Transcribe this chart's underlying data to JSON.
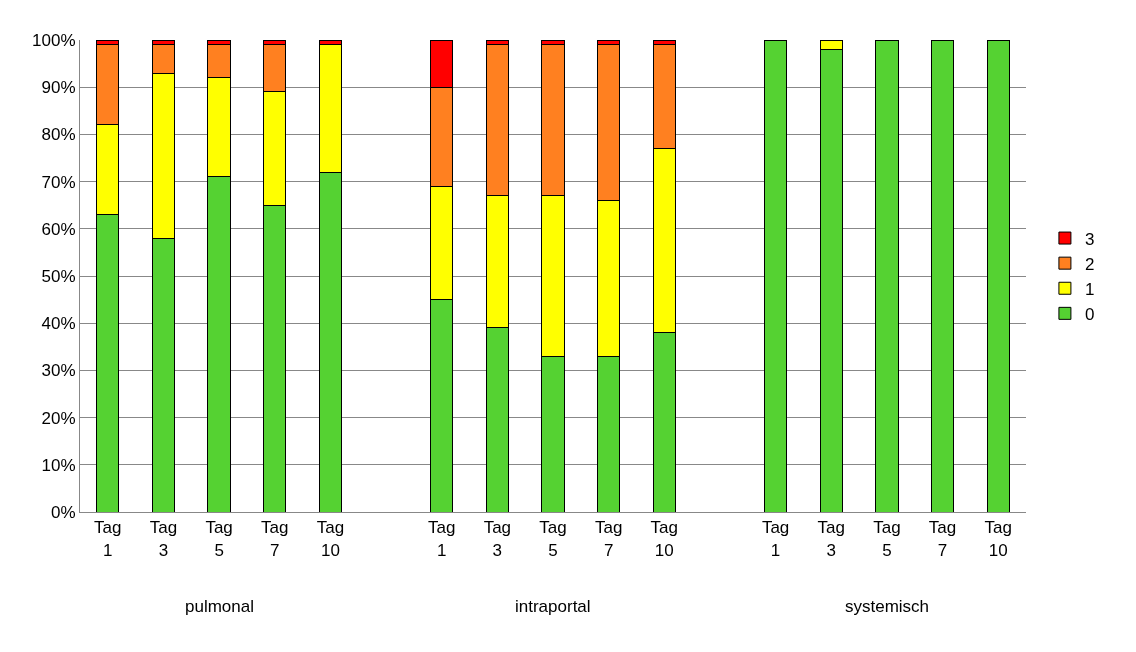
{
  "chart_data": {
    "type": "bar",
    "stacked": true,
    "categories": [
      "Tag 1",
      "Tag 3",
      "Tag 5",
      "Tag 7",
      "Tag 10",
      null,
      "Tag 1",
      "Tag 3",
      "Tag 5",
      "Tag 7",
      "Tag 10",
      null,
      "Tag 1",
      "Tag 3",
      "Tag 5",
      "Tag 7",
      "Tag 10"
    ],
    "series": [
      {
        "name": "0",
        "color": "#55d232",
        "values": [
          63,
          58,
          71,
          65,
          72,
          null,
          45,
          39,
          33,
          33,
          38,
          null,
          100,
          98,
          100,
          100,
          100
        ]
      },
      {
        "name": "1",
        "color": "#ffff00",
        "values": [
          19,
          35,
          21,
          24,
          27,
          null,
          24,
          28,
          34,
          33,
          39,
          null,
          0,
          2,
          0,
          0,
          0
        ]
      },
      {
        "name": "2",
        "color": "#ff8020",
        "values": [
          17,
          6,
          7,
          10,
          0,
          null,
          21,
          32,
          32,
          33,
          22,
          null,
          0,
          0,
          0,
          0,
          0
        ]
      },
      {
        "name": "3",
        "color": "#ff0000",
        "values": [
          1,
          1,
          1,
          1,
          1,
          null,
          10,
          1,
          1,
          1,
          1,
          null,
          0,
          0,
          0,
          0,
          0
        ]
      }
    ],
    "annotations": [
      "pulmonal",
      "intraportal",
      "systemisch"
    ],
    "ylim": [
      0,
      100
    ],
    "yticks": [
      {
        "value": 0,
        "label": "0%"
      },
      {
        "value": 10,
        "label": "10%"
      },
      {
        "value": 20,
        "label": "20%"
      },
      {
        "value": 30,
        "label": "30%"
      },
      {
        "value": 40,
        "label": "40%"
      },
      {
        "value": 50,
        "label": "50%"
      },
      {
        "value": 60,
        "label": "60%"
      },
      {
        "value": 70,
        "label": "70%"
      },
      {
        "value": 80,
        "label": "80%"
      },
      {
        "value": 90,
        "label": "90%"
      },
      {
        "value": 100,
        "label": "100%"
      }
    ],
    "grid": "y",
    "legend": "right"
  }
}
